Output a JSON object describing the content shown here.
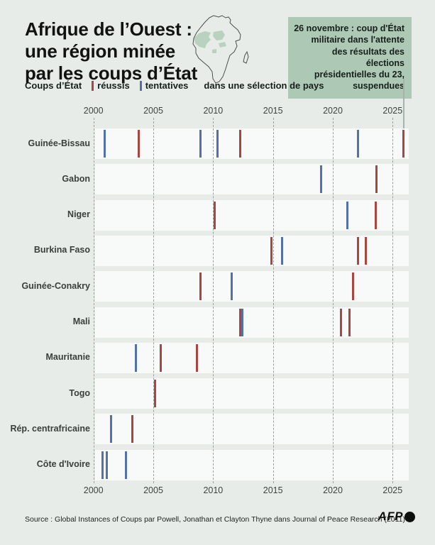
{
  "header": {
    "title": "Afrique de l’Ouest :\nune région minée\npar les coups d’État",
    "annotation": "26 novembre : coup d'État\nmilitaire dans l'attente\ndes résultats des élections\nprésidentielles du 23,\nsuspendues"
  },
  "legend": {
    "prefix": "Coups d’État",
    "reussis": "réussis",
    "tentatives": "tentatives",
    "suffix": "dans une sélection de pays"
  },
  "footer": {
    "source": "Source : Global Instances of Coups par Powell, Jonathan et Clayton Thyne dans Journal of Peace Research (2011)",
    "logo": "AFP"
  },
  "chart_data": {
    "type": "scatter",
    "title": "Coups d’État réussis et tentatives dans une sélection de pays, 2000-2025",
    "x_ticks": [
      2000,
      2005,
      2010,
      2015,
      2020,
      2025
    ],
    "x_range": [
      1999.9,
      2026.3
    ],
    "legend_position": "top-left",
    "grid": "vertical-dashed",
    "colors": {
      "reussi": "#a84642",
      "tentative": "#5470a8"
    },
    "annotation_line_year": 2025.92,
    "countries": [
      {
        "name": "Guinée-Bissau",
        "events": [
          {
            "year": 2000.92,
            "type": "tentative"
          },
          {
            "year": 2003.79,
            "type": "reussi"
          },
          {
            "year": 2008.97,
            "type": "tentative"
          },
          {
            "year": 2010.37,
            "type": "tentative"
          },
          {
            "year": 2012.29,
            "type": "reussi"
          },
          {
            "year": 2022.13,
            "type": "tentative"
          },
          {
            "year": 2025.92,
            "type": "reussi"
          }
        ]
      },
      {
        "name": "Gabon",
        "events": [
          {
            "year": 2019.03,
            "type": "tentative"
          },
          {
            "year": 2023.67,
            "type": "reussi"
          }
        ]
      },
      {
        "name": "Niger",
        "events": [
          {
            "year": 2010.12,
            "type": "reussi"
          },
          {
            "year": 2021.24,
            "type": "tentative"
          },
          {
            "year": 2023.61,
            "type": "reussi"
          }
        ]
      },
      {
        "name": "Burkina Faso",
        "events": [
          {
            "year": 2014.85,
            "type": "reussi"
          },
          {
            "year": 2015.77,
            "type": "tentative"
          },
          {
            "year": 2022.09,
            "type": "reussi"
          },
          {
            "year": 2022.74,
            "type": "reussi"
          }
        ]
      },
      {
        "name": "Guinée-Conakry",
        "events": [
          {
            "year": 2008.95,
            "type": "reussi"
          },
          {
            "year": 2011.56,
            "type": "tentative"
          },
          {
            "year": 2021.7,
            "type": "reussi"
          }
        ]
      },
      {
        "name": "Mali",
        "events": [
          {
            "year": 2012.25,
            "type": "reussi"
          },
          {
            "year": 2012.45,
            "type": "tentative"
          },
          {
            "year": 2020.71,
            "type": "reussi"
          },
          {
            "year": 2021.38,
            "type": "reussi"
          }
        ]
      },
      {
        "name": "Mauritanie",
        "events": [
          {
            "year": 2003.52,
            "type": "tentative"
          },
          {
            "year": 2005.65,
            "type": "reussi"
          },
          {
            "year": 2008.67,
            "type": "reussi"
          }
        ]
      },
      {
        "name": "Togo",
        "events": [
          {
            "year": 2005.17,
            "type": "reussi"
          }
        ]
      },
      {
        "name": "Rép. centrafricaine",
        "events": [
          {
            "year": 2001.5,
            "type": "tentative"
          },
          {
            "year": 2003.22,
            "type": "reussi"
          }
        ]
      },
      {
        "name": "Côte d'Ivoire",
        "events": [
          {
            "year": 2000.77,
            "type": "tentative"
          },
          {
            "year": 2001.13,
            "type": "tentative"
          },
          {
            "year": 2002.74,
            "type": "tentative"
          }
        ]
      }
    ]
  }
}
